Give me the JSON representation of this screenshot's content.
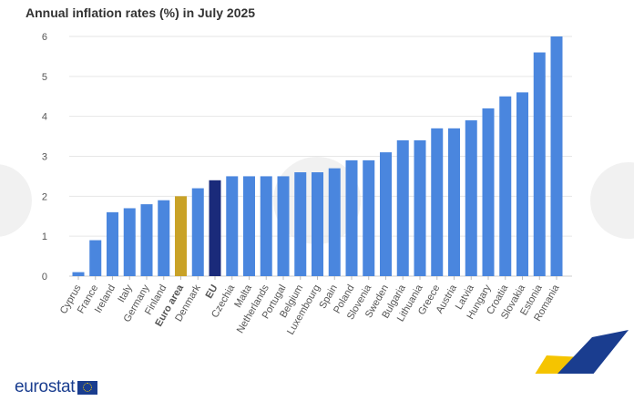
{
  "chart_data": {
    "type": "bar",
    "title": "Annual inflation rates (%) in July 2025",
    "categories": [
      "Cyprus",
      "France",
      "Ireland",
      "Italy",
      "Germany",
      "Finland",
      "Euro area",
      "Denmark",
      "EU",
      "Czechia",
      "Malta",
      "Netherlands",
      "Portugal",
      "Belgium",
      "Luxembourg",
      "Spain",
      "Poland",
      "Slovenia",
      "Sweden",
      "Bulgaria",
      "Lithuania",
      "Greece",
      "Austria",
      "Latvia",
      "Hungary",
      "Croatia",
      "Slovakia",
      "Estonia",
      "Romania"
    ],
    "values": [
      0.1,
      0.9,
      1.6,
      1.7,
      1.8,
      1.9,
      2.0,
      2.2,
      2.4,
      2.5,
      2.5,
      2.5,
      2.5,
      2.6,
      2.6,
      2.7,
      2.9,
      2.9,
      3.1,
      3.4,
      3.4,
      3.7,
      3.7,
      3.9,
      4.2,
      4.5,
      4.6,
      5.6,
      6.0
    ],
    "highlight": {
      "Euro area": "#c9a227",
      "EU": "#1a2a7a"
    },
    "bold_categories": [
      "Euro area",
      "EU"
    ],
    "default_color": "#4a86de",
    "ylim": [
      0,
      6
    ],
    "yticks": [
      0,
      1,
      2,
      3,
      4,
      5,
      6
    ],
    "grid": true,
    "xlabel": "",
    "ylabel": ""
  },
  "footer": {
    "logo_text": "eurostat"
  }
}
